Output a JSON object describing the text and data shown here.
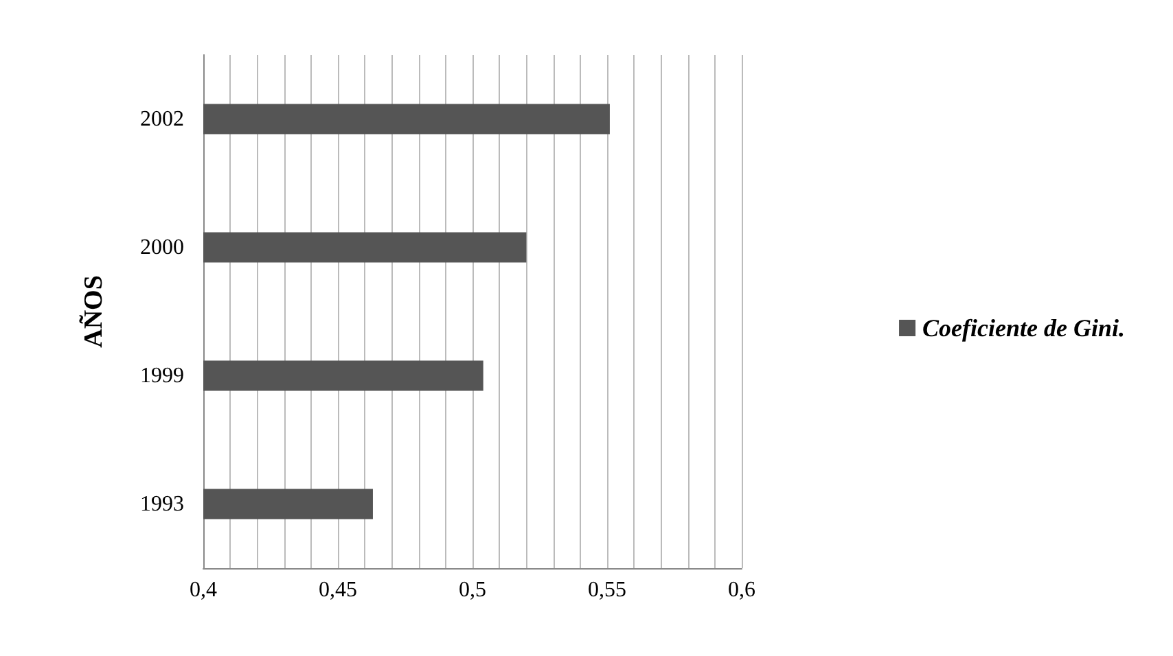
{
  "chart_data": {
    "type": "bar",
    "orientation": "horizontal",
    "ylabel": "AÑOS",
    "categories": [
      "2002",
      "2000",
      "1999",
      "1993"
    ],
    "series": [
      {
        "name": "Coeficiente de Gini.",
        "color": "#555555",
        "values": [
          0.551,
          0.52,
          0.504,
          0.463
        ]
      }
    ],
    "xlim": [
      0.4,
      0.6
    ],
    "xticks": [
      {
        "value": 0.4,
        "label": "0,4"
      },
      {
        "value": 0.41,
        "label": null
      },
      {
        "value": 0.42,
        "label": null
      },
      {
        "value": 0.43,
        "label": null
      },
      {
        "value": 0.44,
        "label": null
      },
      {
        "value": 0.45,
        "label": "0,45"
      },
      {
        "value": 0.46,
        "label": null
      },
      {
        "value": 0.47,
        "label": null
      },
      {
        "value": 0.48,
        "label": null
      },
      {
        "value": 0.49,
        "label": null
      },
      {
        "value": 0.5,
        "label": "0,5"
      },
      {
        "value": 0.51,
        "label": null
      },
      {
        "value": 0.52,
        "label": null
      },
      {
        "value": 0.53,
        "label": null
      },
      {
        "value": 0.54,
        "label": null
      },
      {
        "value": 0.55,
        "label": "0,55"
      },
      {
        "value": 0.56,
        "label": null
      },
      {
        "value": 0.57,
        "label": null
      },
      {
        "value": 0.58,
        "label": null
      },
      {
        "value": 0.59,
        "label": null
      },
      {
        "value": 0.6,
        "label": "0,6"
      }
    ],
    "grid": "x",
    "legend": "right"
  }
}
